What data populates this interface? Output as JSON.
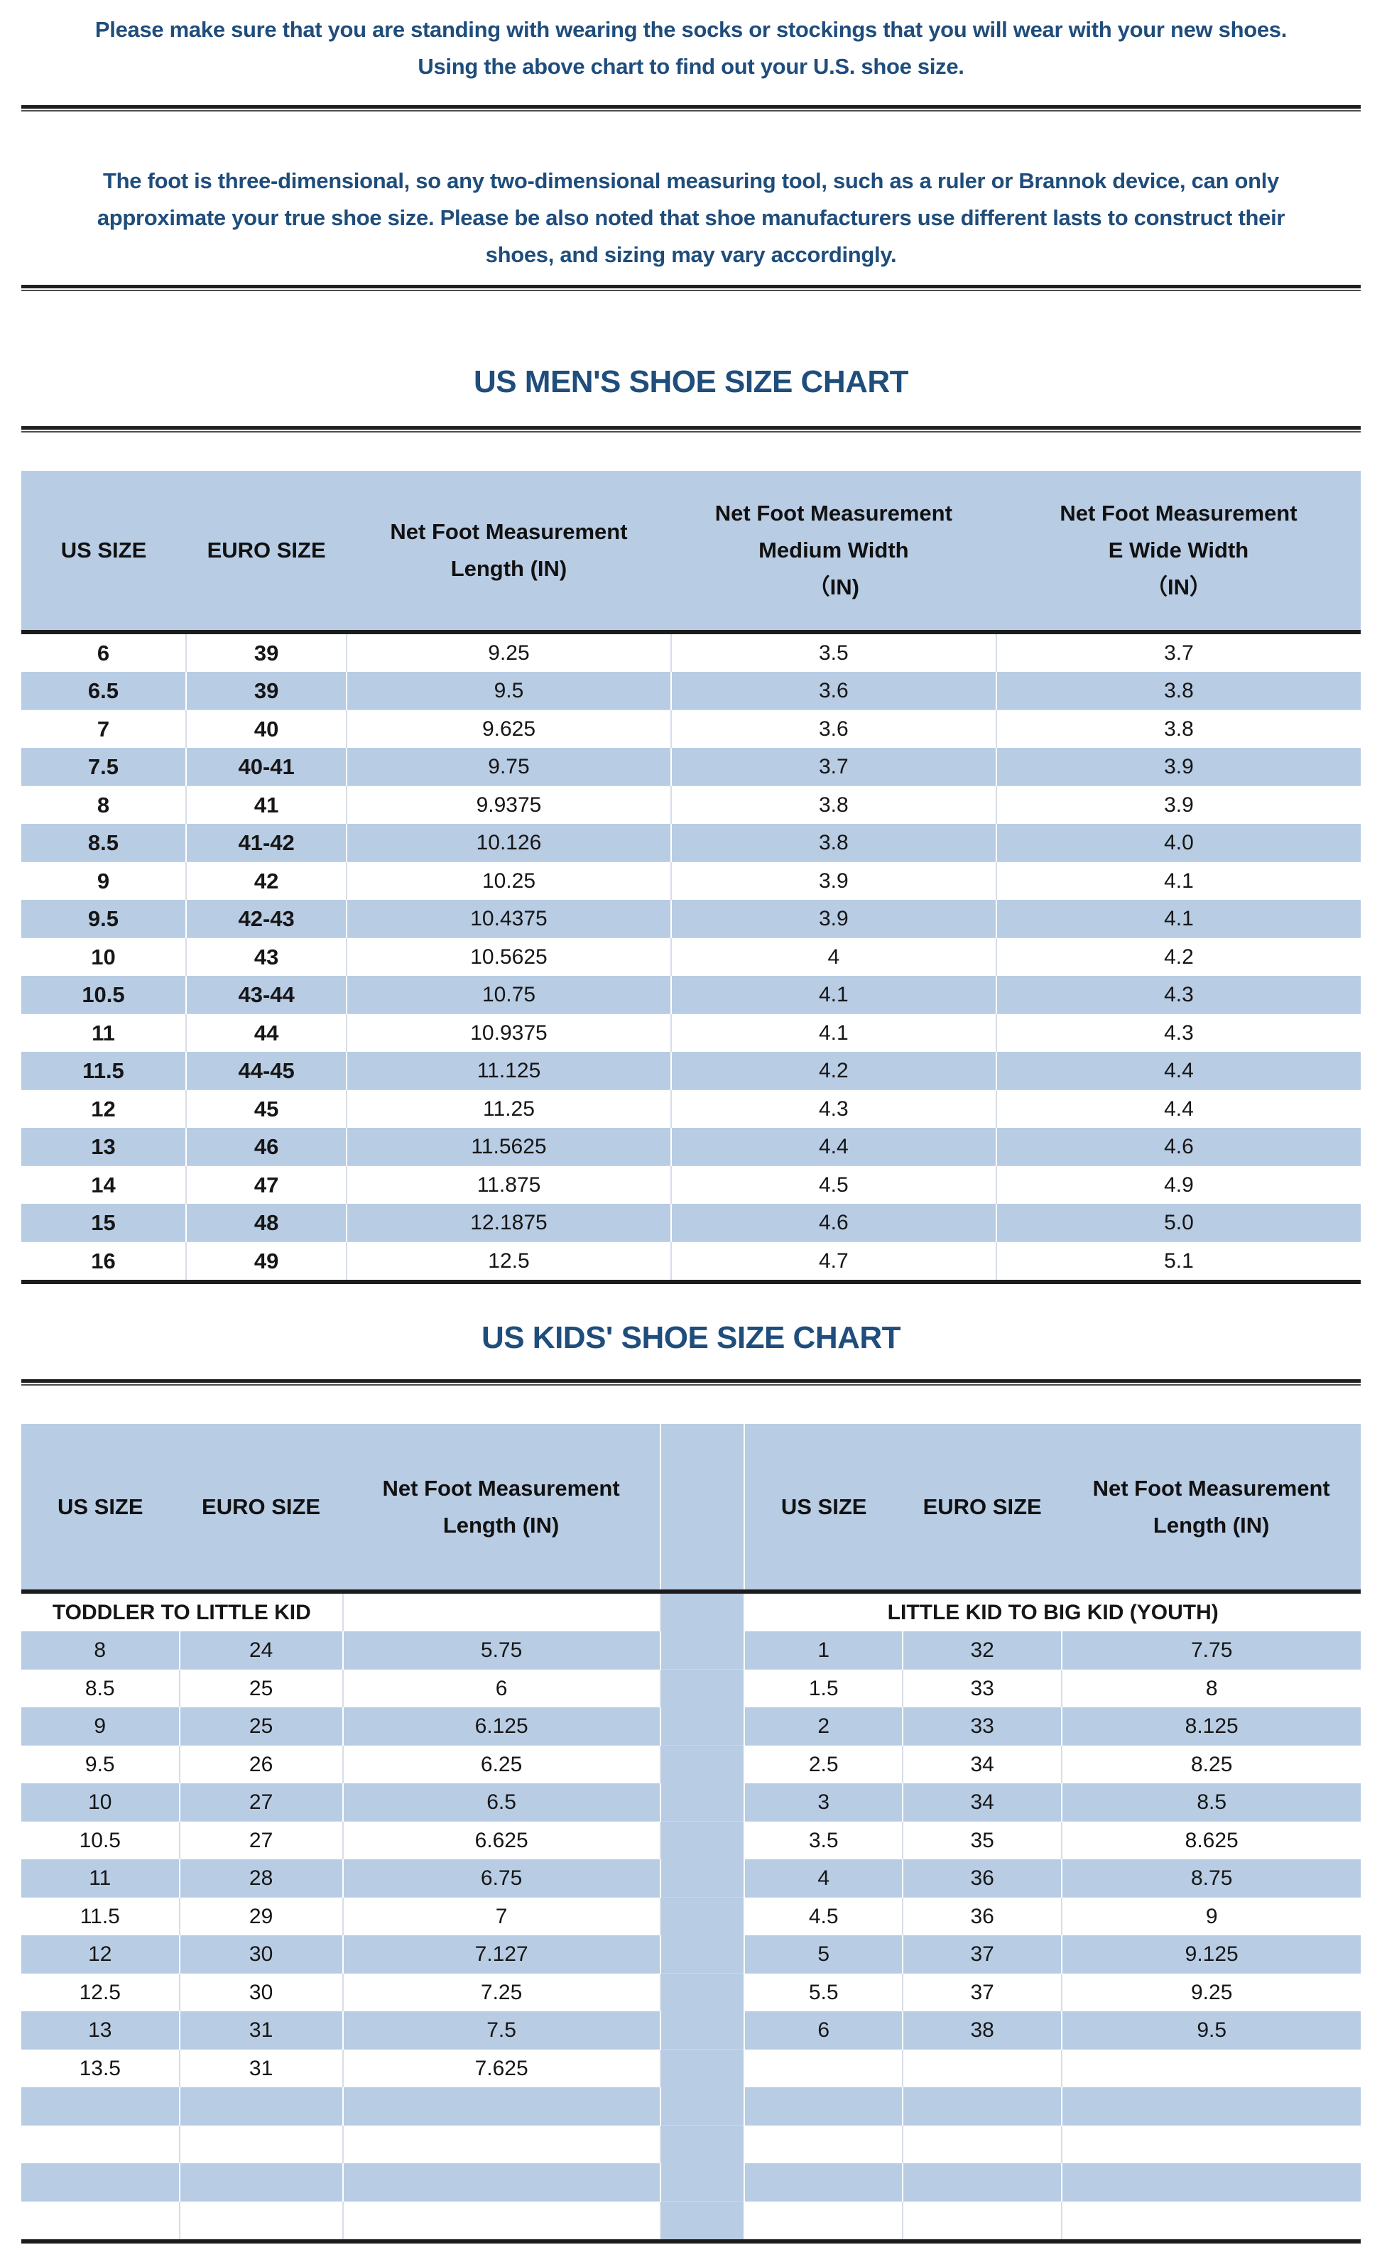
{
  "colors": {
    "heading_text": "#1f4d7c",
    "row_highlight": "#b8cce4",
    "table_text": "#161616",
    "divider": "#1f1f1f"
  },
  "intro": {
    "p1_lines": [
      "Please make sure that you are standing with wearing the socks or stockings that you will wear with your new shoes.",
      "Using the above chart to find out your U.S. shoe size."
    ],
    "p2_lines": [
      "The foot is three-dimensional, so any two-dimensional measuring tool, such as a ruler or Brannok device, can only",
      "approximate your true shoe size. Please be also noted that shoe manufacturers use different lasts to construct their",
      "shoes, and sizing may vary accordingly."
    ]
  },
  "mens": {
    "title": "US MEN'S SHOE SIZE CHART",
    "headers": [
      [
        "US SIZE"
      ],
      [
        "EURO SIZE"
      ],
      [
        "Net Foot Measurement",
        "Length (IN)"
      ],
      [
        "Net Foot Measurement",
        "Medium Width",
        "（IN)"
      ],
      [
        "Net Foot Measurement",
        "E Wide Width",
        "（IN）"
      ]
    ],
    "rows": [
      [
        "6",
        "39",
        "9.25",
        "3.5",
        "3.7"
      ],
      [
        "6.5",
        "39",
        "9.5",
        "3.6",
        "3.8"
      ],
      [
        "7",
        "40",
        "9.625",
        "3.6",
        "3.8"
      ],
      [
        "7.5",
        "40-41",
        "9.75",
        "3.7",
        "3.9"
      ],
      [
        "8",
        "41",
        "9.9375",
        "3.8",
        "3.9"
      ],
      [
        "8.5",
        "41-42",
        "10.126",
        "3.8",
        "4.0"
      ],
      [
        "9",
        "42",
        "10.25",
        "3.9",
        "4.1"
      ],
      [
        "9.5",
        "42-43",
        "10.4375",
        "3.9",
        "4.1"
      ],
      [
        "10",
        "43",
        "10.5625",
        "4",
        "4.2"
      ],
      [
        "10.5",
        "43-44",
        "10.75",
        "4.1",
        "4.3"
      ],
      [
        "11",
        "44",
        "10.9375",
        "4.1",
        "4.3"
      ],
      [
        "11.5",
        "44-45",
        "11.125",
        "4.2",
        "4.4"
      ],
      [
        "12",
        "45",
        "11.25",
        "4.3",
        "4.4"
      ],
      [
        "13",
        "46",
        "11.5625",
        "4.4",
        "4.6"
      ],
      [
        "14",
        "47",
        "11.875",
        "4.5",
        "4.9"
      ],
      [
        "15",
        "48",
        "12.1875",
        "4.6",
        "5.0"
      ],
      [
        "16",
        "49",
        "12.5",
        "4.7",
        "5.1"
      ]
    ]
  },
  "kids": {
    "title": "US KIDS' SHOE SIZE CHART",
    "headers": [
      [
        "US SIZE"
      ],
      [
        "EURO SIZE"
      ],
      [
        "Net Foot Measurement",
        "Length (IN)"
      ],
      [
        "US SIZE"
      ],
      [
        "EURO SIZE"
      ],
      [
        "Net Foot Measurement",
        "Length (IN)"
      ]
    ],
    "section_left": "TODDLER TO LITTLE KID",
    "section_right": "LITTLE KID TO BIG KID (YOUTH)",
    "rows": [
      {
        "left": [
          "8",
          "24",
          "5.75"
        ],
        "right": [
          "1",
          "32",
          "7.75"
        ]
      },
      {
        "left": [
          "8.5",
          "25",
          "6"
        ],
        "right": [
          "1.5",
          "33",
          "8"
        ]
      },
      {
        "left": [
          "9",
          "25",
          "6.125"
        ],
        "right": [
          "2",
          "33",
          "8.125"
        ]
      },
      {
        "left": [
          "9.5",
          "26",
          "6.25"
        ],
        "right": [
          "2.5",
          "34",
          "8.25"
        ]
      },
      {
        "left": [
          "10",
          "27",
          "6.5"
        ],
        "right": [
          "3",
          "34",
          "8.5"
        ]
      },
      {
        "left": [
          "10.5",
          "27",
          "6.625"
        ],
        "right": [
          "3.5",
          "35",
          "8.625"
        ]
      },
      {
        "left": [
          "11",
          "28",
          "6.75"
        ],
        "right": [
          "4",
          "36",
          "8.75"
        ]
      },
      {
        "left": [
          "11.5",
          "29",
          "7"
        ],
        "right": [
          "4.5",
          "36",
          "9"
        ]
      },
      {
        "left": [
          "12",
          "30",
          "7.127"
        ],
        "right": [
          "5",
          "37",
          "9.125"
        ]
      },
      {
        "left": [
          "12.5",
          "30",
          "7.25"
        ],
        "right": [
          "5.5",
          "37",
          "9.25"
        ]
      },
      {
        "left": [
          "13",
          "31",
          "7.5"
        ],
        "right": [
          "6",
          "38",
          "9.5"
        ]
      },
      {
        "left": [
          "13.5",
          "31",
          "7.625"
        ],
        "right": [
          "",
          "",
          ""
        ]
      },
      {
        "left": [
          "",
          "",
          ""
        ],
        "right": [
          "",
          "",
          ""
        ]
      },
      {
        "left": [
          "",
          "",
          ""
        ],
        "right": [
          "",
          "",
          ""
        ]
      },
      {
        "left": [
          "",
          "",
          ""
        ],
        "right": [
          "",
          "",
          ""
        ]
      },
      {
        "left": [
          "",
          "",
          ""
        ],
        "right": [
          "",
          "",
          ""
        ]
      }
    ]
  }
}
